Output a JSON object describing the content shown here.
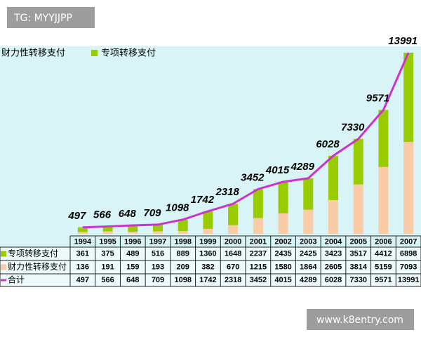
{
  "watermarks": [
    "TG: MYYJJPP",
    "www.k8entry.com"
  ],
  "chart_data": {
    "type": "bar",
    "stacked": true,
    "categories": [
      "1994",
      "1995",
      "1996",
      "1997",
      "1998",
      "1999",
      "2000",
      "2001",
      "2002",
      "2003",
      "2004",
      "2005",
      "2006",
      "2007"
    ],
    "series": [
      {
        "name": "专项转移支付",
        "color": "#99cc00",
        "values": [
          361,
          375,
          489,
          516,
          889,
          1360,
          1648,
          2237,
          2435,
          2425,
          3423,
          3517,
          4412,
          6898
        ]
      },
      {
        "name": "财力性转移支付",
        "color": "#f9cba7",
        "values": [
          136,
          191,
          159,
          193,
          209,
          382,
          670,
          1215,
          1580,
          1864,
          2605,
          3814,
          5159,
          7093
        ]
      },
      {
        "name": "合计",
        "color": "#cc33cc",
        "type": "line",
        "values": [
          497,
          566,
          648,
          709,
          1098,
          1742,
          2318,
          3452,
          4015,
          4289,
          6028,
          7330,
          9571,
          13991
        ]
      }
    ]
  }
}
